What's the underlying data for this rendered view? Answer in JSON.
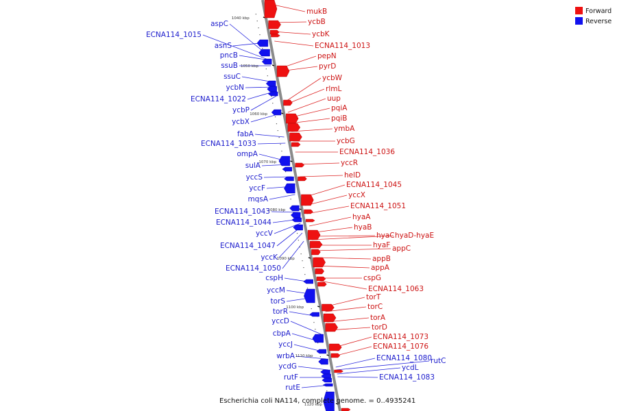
{
  "caption": "Escherichia coli NA114, complete genome. = 0..4935241",
  "legend": [
    {
      "label": "Forward",
      "color": "#ee1111"
    },
    {
      "label": "Reverse",
      "color": "#1111ee"
    }
  ],
  "colors": {
    "forward": "#ee1111",
    "reverse": "#1111ee",
    "backbone": "#8a8a8a"
  },
  "ticks": [
    "1040 kbp",
    "1050 kbp",
    "1060 kbp",
    "1070 kbp",
    "1080 kbp",
    "1090 kbp",
    "1100 kbp",
    "1110 kbp",
    "1120 kbp"
  ],
  "forward_genes": [
    "mukB",
    "ycbB",
    "ycbK",
    "ECNA114_1013",
    "pepN",
    "pyrD",
    "ycbW",
    "rlmL",
    "uup",
    "pqiA",
    "pqiB",
    "ymbA",
    "ycbG",
    "ECNA114_1036",
    "yccR",
    "helD",
    "ECNA114_1045",
    "yccX",
    "ECNA114_1051",
    "hyaA",
    "hyaB",
    "hyaC",
    "hyaD-hyaE",
    "hyaF",
    "appC",
    "appB",
    "appA",
    "cspG",
    "ECNA114_1063",
    "torT",
    "torC",
    "torA",
    "torD",
    "ECNA114_1073",
    "ECNA114_1076"
  ],
  "reverse_genes": [
    "aspC",
    "ECNA114_1015",
    "asnS",
    "pncB",
    "ssuB",
    "ssuC",
    "ycbN",
    "ECNA114_1022",
    "ycbP",
    "ycbX",
    "fabA",
    "ECNA114_1033",
    "ompA",
    "sulA",
    "yccS",
    "yccF",
    "mqsA",
    "ECNA114_1043",
    "ECNA114_1044",
    "yccV",
    "ECNA114_1047",
    "yccK",
    "ECNA114_1050",
    "cspH",
    "yccM",
    "torS",
    "torR",
    "yccD",
    "cbpA",
    "yccJ",
    "wrbA",
    "ycdG",
    "rutF",
    "rutE"
  ],
  "right_reverse_genes": [
    "ECNA114_1080",
    "rutC",
    "ycdL",
    "ECNA114_1083"
  ]
}
